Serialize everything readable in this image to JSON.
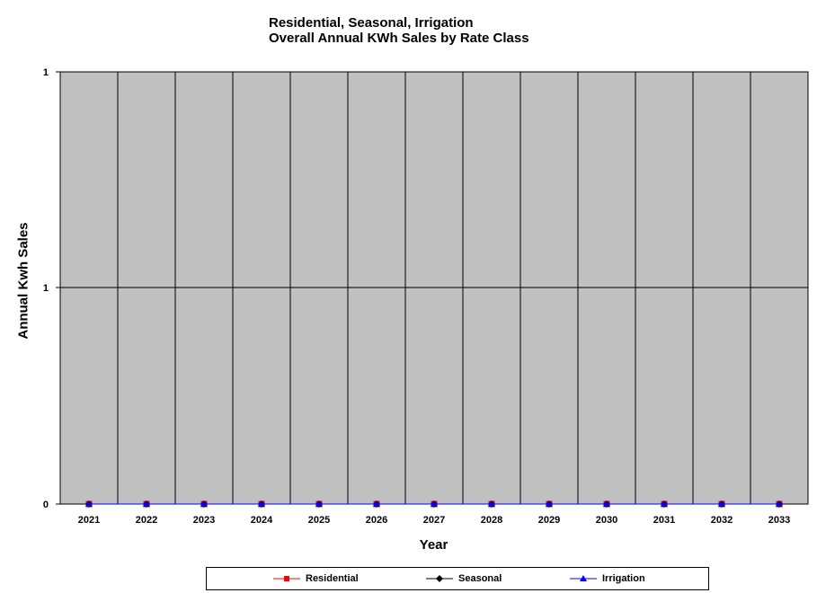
{
  "chart_data": {
    "type": "line",
    "title": [
      "Residential, Seasonal, Irrigation",
      "Overall Annual KWh Sales by Rate Class"
    ],
    "xlabel": "Year",
    "ylabel": "Annual Kwh Sales",
    "categories": [
      "2021",
      "2022",
      "2023",
      "2024",
      "2025",
      "2026",
      "2027",
      "2028",
      "2029",
      "2030",
      "2031",
      "2032",
      "2033"
    ],
    "y_tick_labels": [
      "0",
      "1",
      "1"
    ],
    "ylim": [
      0,
      1
    ],
    "grid": true,
    "plot_background": "#c0c0c0",
    "legend_position": "bottom",
    "series": [
      {
        "name": "Residential",
        "color": "#ff0000",
        "marker": "square",
        "values": [
          0,
          0,
          0,
          0,
          0,
          0,
          0,
          0,
          0,
          0,
          0,
          0,
          0
        ]
      },
      {
        "name": "Seasonal",
        "color": "#000000",
        "marker": "diamond",
        "values": [
          0,
          0,
          0,
          0,
          0,
          0,
          0,
          0,
          0,
          0,
          0,
          0,
          0
        ]
      },
      {
        "name": "Irrigation",
        "color": "#0000ff",
        "marker": "triangle",
        "values": [
          0,
          0,
          0,
          0,
          0,
          0,
          0,
          0,
          0,
          0,
          0,
          0,
          0
        ]
      }
    ]
  }
}
